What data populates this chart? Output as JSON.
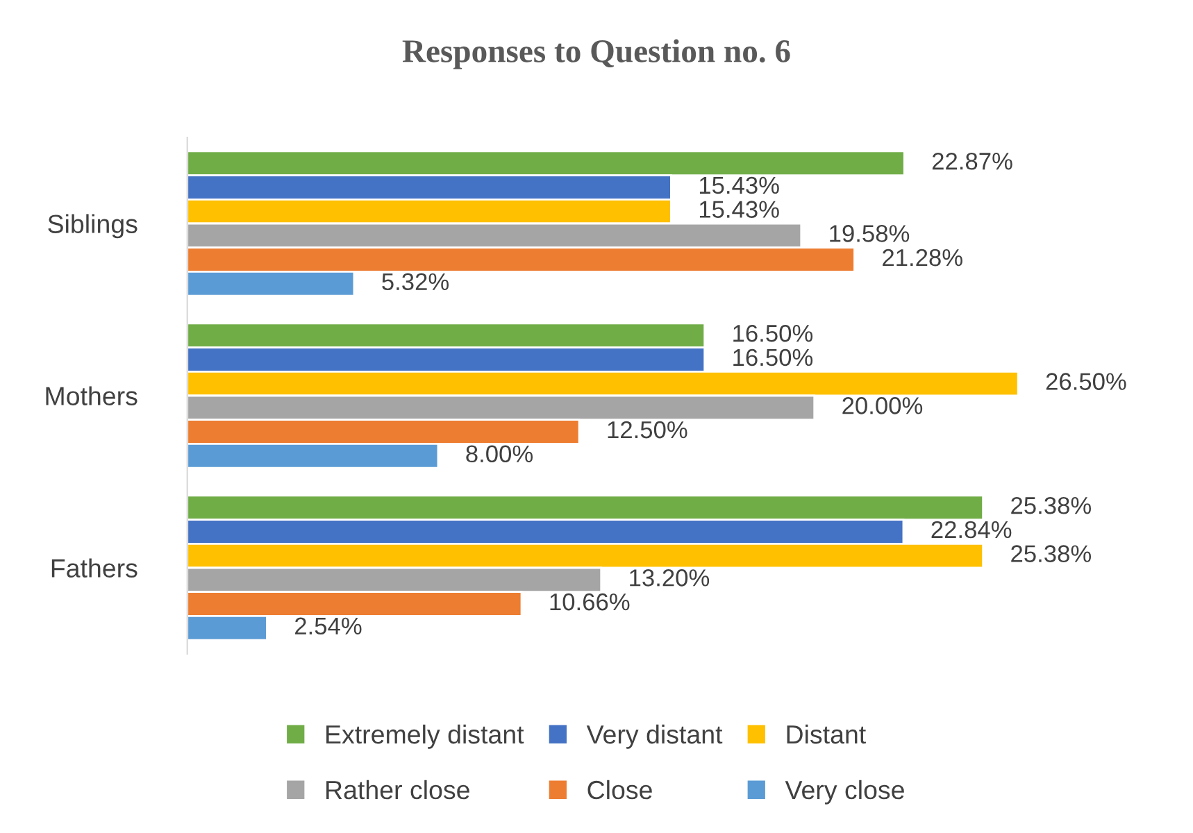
{
  "chart_data": {
    "type": "bar",
    "orientation": "horizontal",
    "title": "Responses to Question no. 6",
    "categories": [
      "Siblings",
      "Mothers",
      "Fathers"
    ],
    "series": [
      {
        "name": "Extremely distant",
        "color": "#70ad47",
        "values": [
          22.87,
          16.5,
          25.38
        ],
        "value_labels": [
          "22.87%",
          "16.50%",
          "25.38%"
        ]
      },
      {
        "name": "Very distant",
        "color": "#4472c4",
        "values": [
          15.43,
          16.5,
          22.84
        ],
        "value_labels": [
          "15.43%",
          "16.50%",
          "22.84%"
        ]
      },
      {
        "name": "Distant",
        "color": "#ffc000",
        "values": [
          15.43,
          26.5,
          25.38
        ],
        "value_labels": [
          "15.43%",
          "26.50%",
          "25.38%"
        ]
      },
      {
        "name": "Rather close",
        "color": "#a5a5a5",
        "values": [
          19.58,
          20.0,
          13.2
        ],
        "value_labels": [
          "19.58%",
          "20.00%",
          "13.20%"
        ]
      },
      {
        "name": "Close",
        "color": "#ed7d31",
        "values": [
          21.28,
          12.5,
          10.66
        ],
        "value_labels": [
          "21.28%",
          "12.50%",
          "10.66%"
        ]
      },
      {
        "name": "Very close",
        "color": "#5b9bd5",
        "values": [
          5.32,
          8.0,
          2.54
        ],
        "value_labels": [
          "5.32%",
          "8.00%",
          "2.54%"
        ]
      }
    ],
    "tick_labels": "y",
    "grid": false,
    "legend": "bottom"
  }
}
